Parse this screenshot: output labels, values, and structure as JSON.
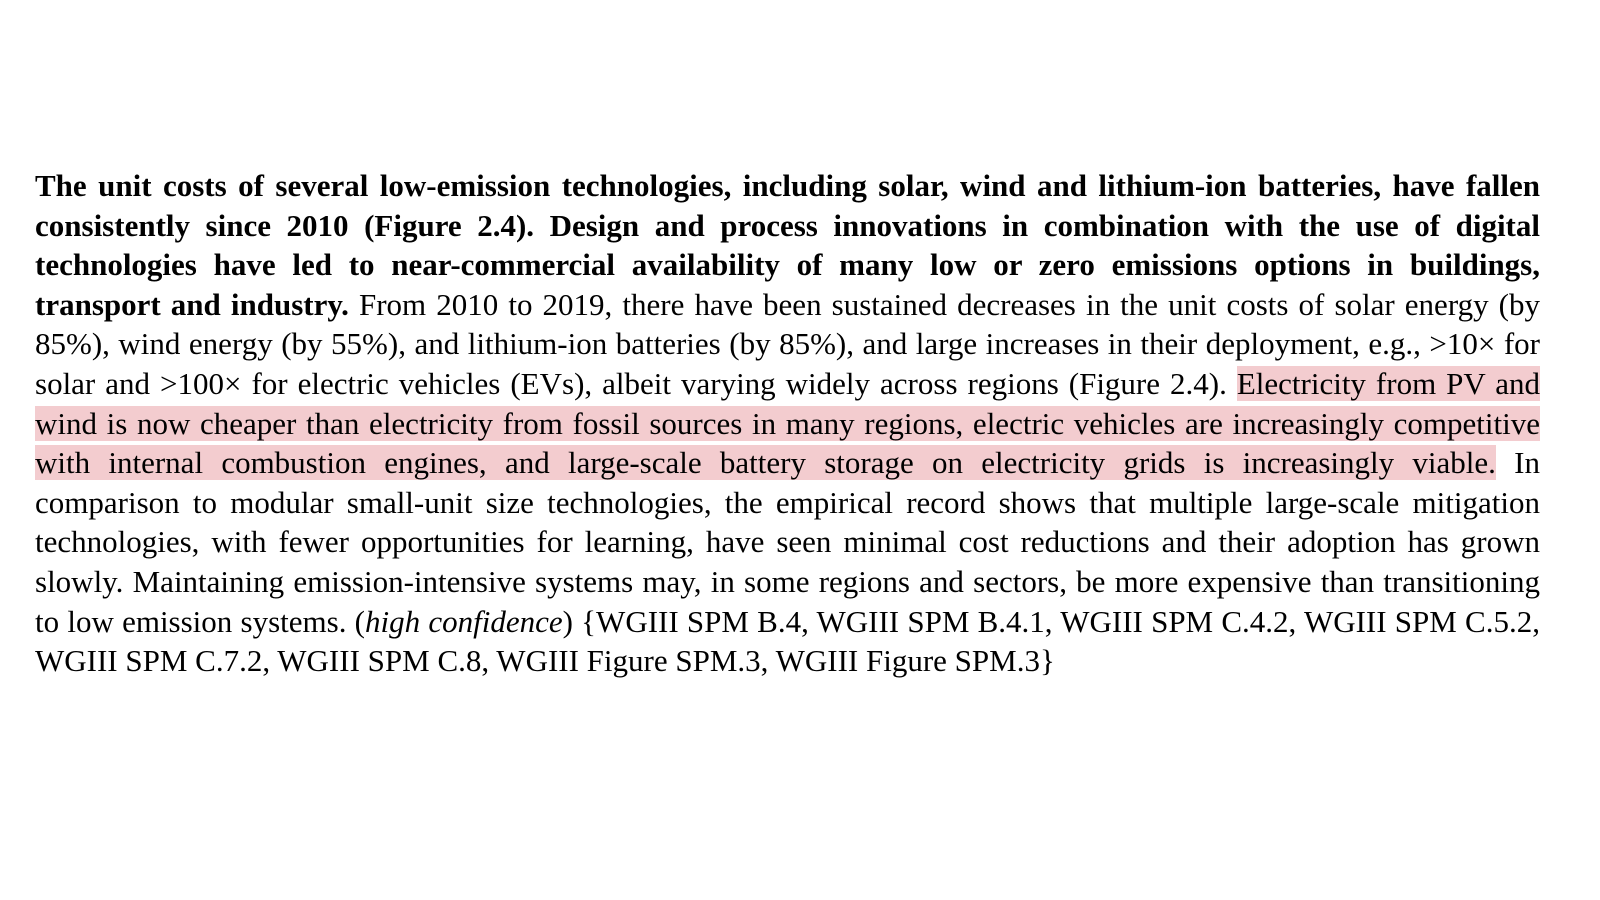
{
  "document": {
    "paragraph": {
      "bold_lead": "The unit costs of several low-emission technologies, including solar, wind and lithium-ion batteries, have fallen consistently since 2010 (Figure 2.4). Design and process innovations in combination with the use of digital technologies have led to near-commercial availability of many low or zero emissions options in buildings, transport and industry.",
      "body_part_1": " From 2010 to 2019, there have been sustained decreases in the unit costs of solar energy (by 85%), wind energy (by 55%), and lithium-ion batteries (by 85%), and large increases in their deployment, e.g., >10× for solar and >100× for electric vehicles (EVs), albeit varying widely across regions (Figure 2.4). ",
      "highlighted": "Electricity from PV and wind is now cheaper than electricity from fossil sources in many regions, electric vehicles are increasingly competitive with internal combustion engines, and large-scale battery storage on electricity grids is increasingly viable.",
      "body_part_2": " In comparison to modular small-unit size technologies, the empirical record shows that multiple large-scale mitigation technologies, with fewer opportunities for learning, have seen minimal cost reductions and their adoption has grown slowly. Maintaining emission-intensive systems may, in some regions and sectors, be more expensive than transitioning to low emission systems. (",
      "confidence": "high confidence",
      "references": ") {WGIII SPM B.4, WGIII SPM B.4.1, WGIII SPM C.4.2, WGIII SPM C.5.2, WGIII SPM C.7.2, WGIII SPM C.8, WGIII Figure SPM.3, WGIII Figure SPM.3}"
    },
    "colors": {
      "text": "#000000",
      "highlight": "#f3cccf",
      "background": "#ffffff"
    }
  }
}
